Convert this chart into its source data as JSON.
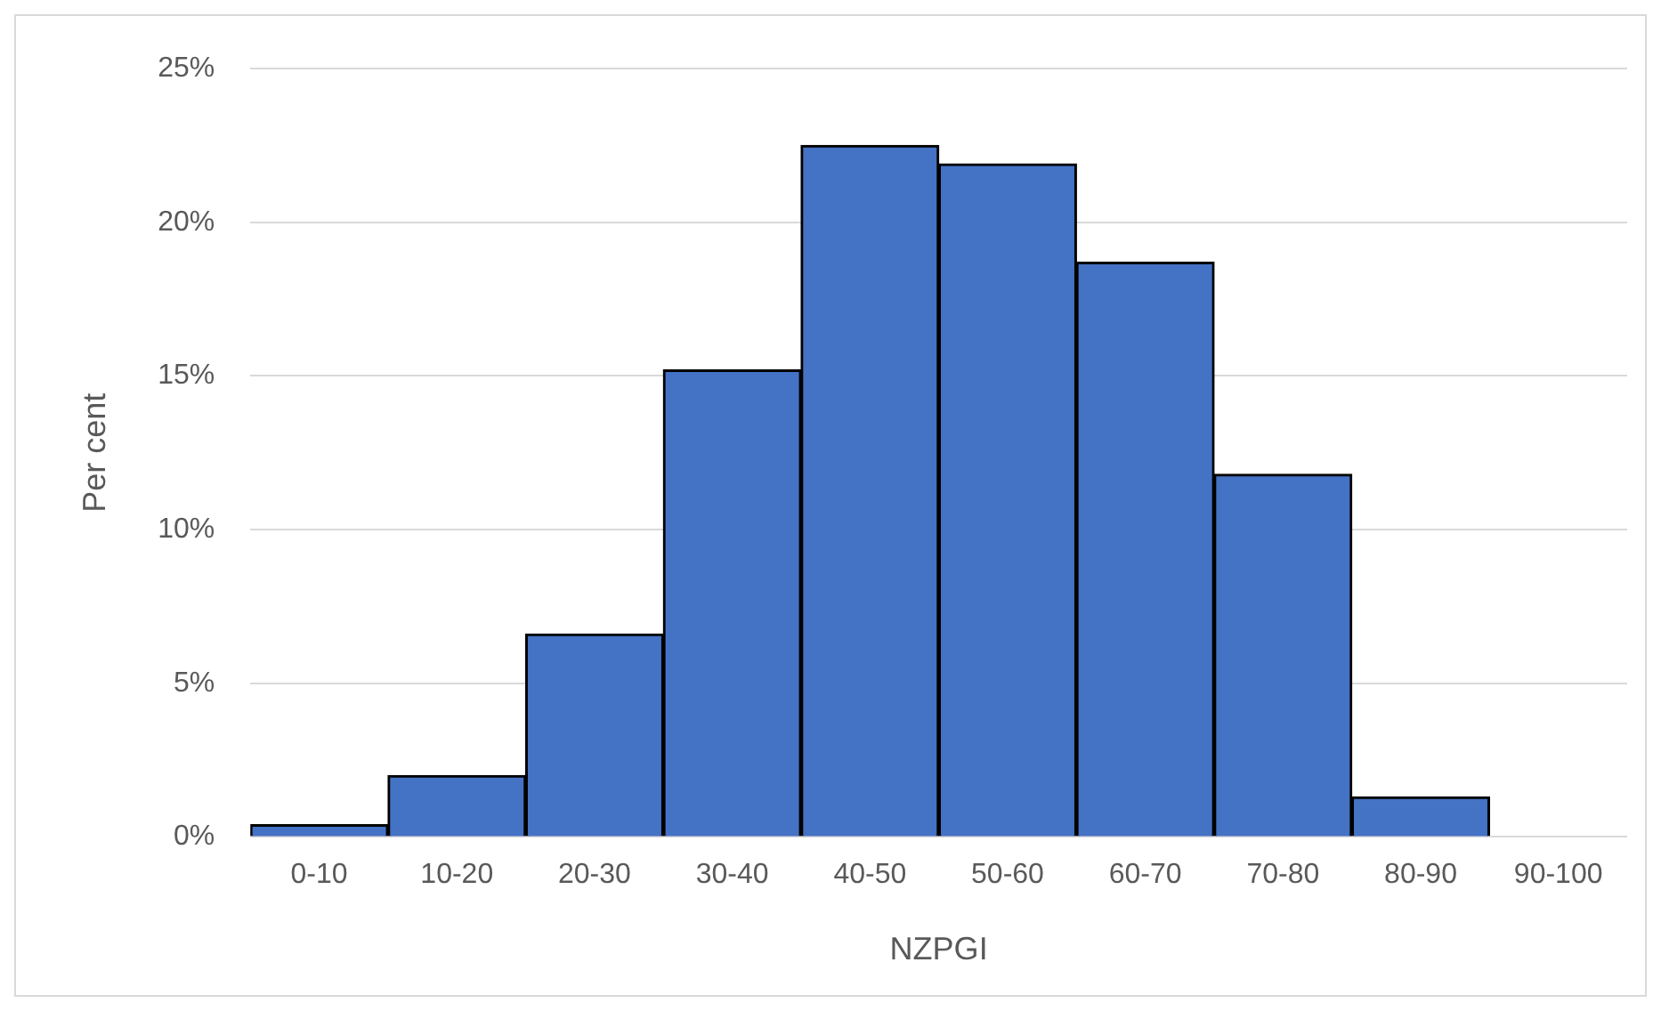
{
  "chart_data": {
    "type": "bar",
    "xlabel": "NZPGI",
    "ylabel": "Per cent",
    "categories": [
      "0-10",
      "10-20",
      "20-30",
      "30-40",
      "40-50",
      "50-60",
      "60-70",
      "70-80",
      "80-90",
      "90-100"
    ],
    "values": [
      0.4,
      2.0,
      6.6,
      15.2,
      22.5,
      21.9,
      18.7,
      11.8,
      1.3,
      0
    ],
    "color": "#4472c4",
    "ylim": [
      0,
      25
    ],
    "yticks": [
      {
        "value": 0,
        "label": "0%"
      },
      {
        "value": 5,
        "label": "5%"
      },
      {
        "value": 10,
        "label": "10%"
      },
      {
        "value": 15,
        "label": "15%"
      },
      {
        "value": 20,
        "label": "20%"
      },
      {
        "value": 25,
        "label": "25%"
      }
    ],
    "grid": "y",
    "legend": false
  }
}
